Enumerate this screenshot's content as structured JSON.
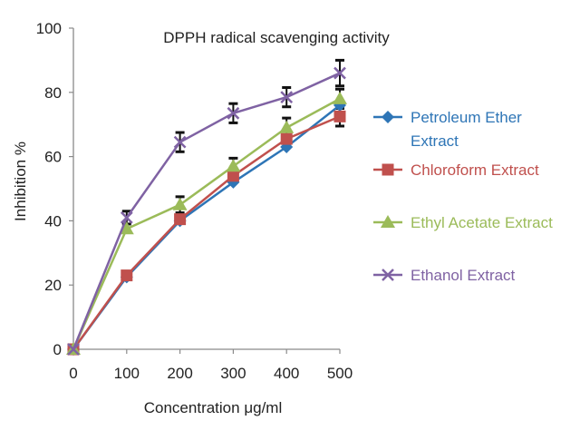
{
  "chart_data": {
    "type": "line",
    "title": "DPPH radical scavenging activity",
    "xlabel": "Concentration μg/ml",
    "ylabel": "Inhibition %",
    "x": [
      0,
      100,
      200,
      300,
      400,
      500
    ],
    "xticks": [
      "0",
      "100",
      "200",
      "300",
      "400",
      "500"
    ],
    "yticks": [
      "0",
      "20",
      "40",
      "60",
      "80",
      "100"
    ],
    "xlim": [
      0,
      500
    ],
    "ylim": [
      0,
      100
    ],
    "grid": false,
    "legend_position": "right",
    "error_bars": true,
    "series": [
      {
        "name": "Petroleum Ether Extract",
        "name_lines": [
          "Petroleum Ether",
          "Extract"
        ],
        "color": "#2e75b6",
        "marker": "diamond",
        "values": [
          0,
          22.5,
          40,
          52,
          63,
          76
        ]
      },
      {
        "name": "Chloroform Extract",
        "name_lines": [
          "Chloroform Extract"
        ],
        "color": "#c0504d",
        "marker": "square",
        "values": [
          0,
          23,
          40.5,
          54,
          65.5,
          72.5
        ],
        "errors": [
          0,
          0,
          0,
          0,
          0,
          3
        ]
      },
      {
        "name": "Ethyl Acetate Extract",
        "name_lines": [
          "Ethyl Acetate Extract"
        ],
        "color": "#9bbb59",
        "marker": "triangle",
        "values": [
          0,
          37.5,
          45,
          57,
          69,
          78
        ],
        "errors": [
          0,
          0,
          2.5,
          2.5,
          3,
          3
        ]
      },
      {
        "name": "Ethanol Extract",
        "name_lines": [
          "Ethanol Extract"
        ],
        "color": "#7f62a3",
        "marker": "x",
        "values": [
          0,
          41,
          64.5,
          73.5,
          78.5,
          86
        ],
        "errors": [
          0,
          2,
          3,
          3,
          3,
          4
        ]
      }
    ]
  }
}
